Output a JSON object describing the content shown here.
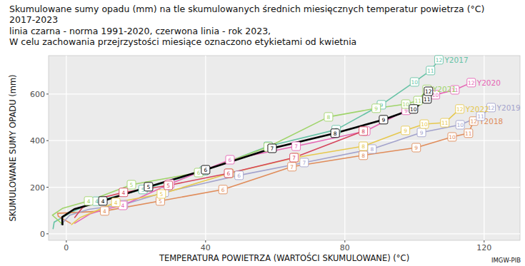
{
  "chart_data": {
    "type": "line",
    "title": "Skumulowane sumy opadu (mm) na tle skumulowanych średnich miesięcznych temperatur powietrza (°C)",
    "subtitle": [
      "2017-2023",
      "linia czarna - norma 1991-2020, czerwona linia - rok 2023,",
      "W celu zachowania przejrzystości miesiące oznaczono etykietami od kwietnia"
    ],
    "x_label": "TEMPERATURA POWIETRZA (WARTOŚCI SKUMULOWANE) (°C)",
    "y_label": "SKUMULOWANE SUMY OPADU (mm)",
    "source": "IMGW-PIB",
    "xlim": [
      -5.1,
      130.3
    ],
    "ylim": [
      -28,
      765
    ],
    "xticks": [
      0,
      40,
      80,
      120
    ],
    "yticks": [
      0,
      200,
      400,
      600
    ],
    "grid": true,
    "month_labels": [
      null,
      null,
      null,
      4,
      5,
      6,
      7,
      8,
      9,
      10,
      11,
      12
    ],
    "series": [
      {
        "name": "Y2017",
        "color": "#66c2a5",
        "x": [
          -3.8,
          -3.5,
          1.8,
          8.7,
          22.0,
          39.5,
          58.0,
          77.5,
          90.5,
          100.0,
          104.6,
          107.0
        ],
        "values": [
          22,
          50,
          95,
          140,
          190,
          270,
          376,
          447,
          554,
          652,
          701,
          747
        ]
      },
      {
        "name": "Y2018",
        "color": "#e08c5a",
        "x": [
          1.2,
          -2.3,
          -2.5,
          11.0,
          27.0,
          45.0,
          64.8,
          85.3,
          100.5,
          110.8,
          115.5,
          117.0
        ],
        "values": [
          45,
          75,
          88,
          98,
          141,
          190,
          288,
          337,
          370,
          416,
          432,
          484
        ]
      },
      {
        "name": "Y2019",
        "color": "#a3a3cc",
        "x": [
          -1.5,
          1.0,
          6.5,
          16.4,
          28.1,
          49.6,
          68.3,
          87.8,
          102.0,
          113.1,
          119.0,
          122.0
        ],
        "values": [
          40,
          80,
          105,
          125,
          178,
          251,
          306,
          364,
          435,
          468,
          505,
          542
        ]
      },
      {
        "name": "Y2020",
        "color": "#e565b4",
        "x": [
          2.4,
          6.8,
          11.0,
          16.2,
          29.7,
          47.0,
          66.0,
          86.0,
          97.6,
          106.0,
          111.6,
          116.3
        ],
        "values": [
          45,
          85,
          105,
          122,
          214,
          318,
          376,
          441,
          530,
          597,
          618,
          649
        ]
      },
      {
        "name": "Y2021",
        "color": "#9fd46a",
        "x": [
          -1.0,
          -4.0,
          -1.0,
          6.4,
          18.7,
          38.0,
          58.0,
          75.3,
          89.0,
          97.5,
          101.0,
          103.6
        ],
        "values": [
          40,
          80,
          110,
          141,
          211,
          263,
          373,
          502,
          539,
          557,
          572,
          620
        ]
      },
      {
        "name": "Y2022",
        "color": "#e6c84e",
        "x": [
          1.5,
          4.0,
          7.2,
          14.2,
          27.3,
          46.8,
          65.8,
          85.3,
          97.4,
          102.8,
          108.7,
          113.0
        ],
        "values": [
          40,
          70,
          90,
          135,
          171,
          260,
          327,
          376,
          444,
          471,
          477,
          536
        ]
      },
      {
        "color": "#d6455c",
        "x": [
          2.4,
          4.5,
          9.0,
          16.4,
          29.3,
          46.6,
          65.4,
          85.3,
          null,
          null,
          null,
          null
        ],
        "values": [
          70,
          110,
          150,
          178,
          208,
          260,
          327,
          441,
          null,
          null,
          null,
          null
        ]
      },
      {
        "color": "#000000",
        "line_style": "thick",
        "x": [
          -1.1,
          -1.2,
          2.3,
          10.5,
          23.6,
          40.0,
          59.1,
          77.2,
          91.1,
          99.7,
          103.6,
          104.0
        ],
        "values": [
          40,
          72,
          106,
          141,
          202,
          275,
          367,
          432,
          490,
          536,
          579,
          612
        ]
      }
    ]
  }
}
